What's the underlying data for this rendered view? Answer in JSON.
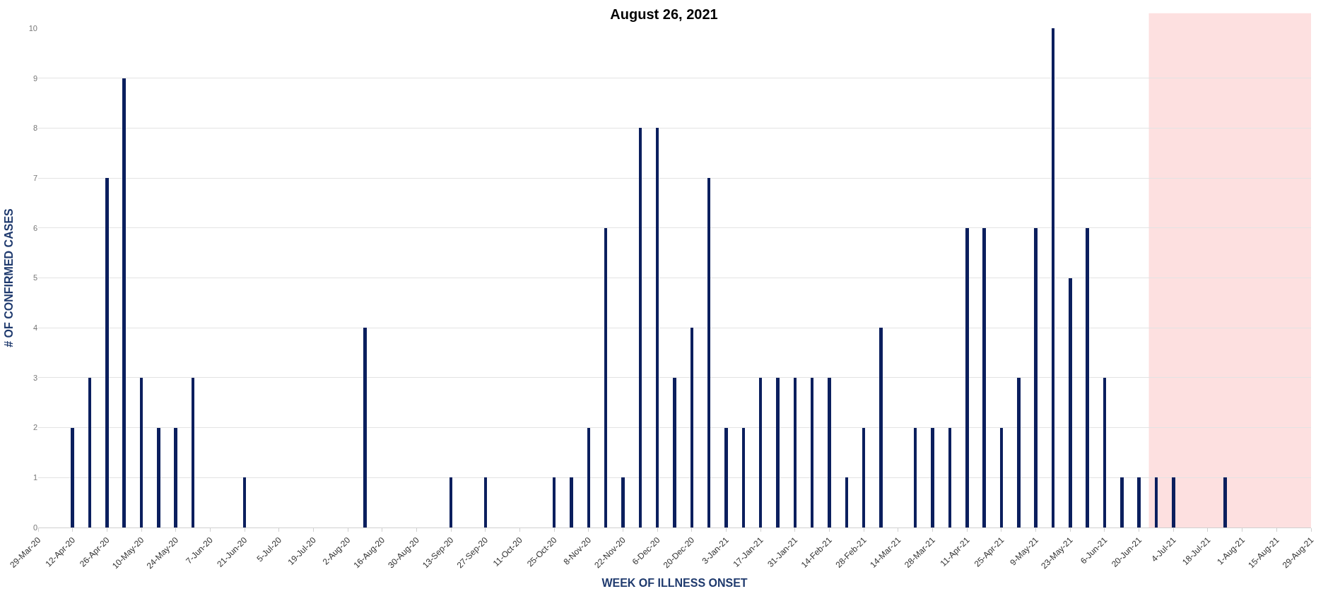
{
  "chart_data": {
    "type": "bar",
    "title": "August 26, 2021",
    "xlabel": "WEEK OF ILLNESS ONSET",
    "ylabel": "# OF CONFIRMED CASES",
    "color": "#0b1f5e",
    "x": [
      "2020-04-12",
      "2020-04-19",
      "2020-04-26",
      "2020-05-03",
      "2020-05-10",
      "2020-05-17",
      "2020-05-24",
      "2020-05-31",
      "2020-06-21",
      "2020-08-09",
      "2020-09-13",
      "2020-09-27",
      "2020-10-25",
      "2020-11-01",
      "2020-11-08",
      "2020-11-15",
      "2020-11-22",
      "2020-11-29",
      "2020-12-06",
      "2020-12-13",
      "2020-12-20",
      "2020-12-27",
      "2021-01-03",
      "2021-01-10",
      "2021-01-17",
      "2021-01-24",
      "2021-01-31",
      "2021-02-07",
      "2021-02-14",
      "2021-02-21",
      "2021-02-28",
      "2021-03-07",
      "2021-03-21",
      "2021-03-28",
      "2021-04-04",
      "2021-04-11",
      "2021-04-18",
      "2021-04-25",
      "2021-05-02",
      "2021-05-09",
      "2021-05-16",
      "2021-05-23",
      "2021-05-30",
      "2021-06-06",
      "2021-06-13",
      "2021-06-20",
      "2021-06-27",
      "2021-07-04",
      "2021-07-25"
    ],
    "values": [
      2,
      3,
      7,
      9,
      3,
      2,
      2,
      3,
      1,
      4,
      1,
      1,
      1,
      1,
      2,
      6,
      1,
      8,
      8,
      3,
      4,
      7,
      2,
      2,
      3,
      3,
      3,
      3,
      3,
      1,
      2,
      4,
      2,
      2,
      2,
      6,
      6,
      2,
      3,
      6,
      10,
      5,
      6,
      3,
      1,
      1,
      1,
      1,
      1
    ],
    "xlim": [
      "2020-03-29",
      "2021-08-29"
    ],
    "xticks": [
      {
        "value": "2020-03-29",
        "label": "29-Mar-20"
      },
      {
        "value": "2020-04-12",
        "label": "12-Apr-20"
      },
      {
        "value": "2020-04-26",
        "label": "26-Apr-20"
      },
      {
        "value": "2020-05-10",
        "label": "10-May-20"
      },
      {
        "value": "2020-05-24",
        "label": "24-May-20"
      },
      {
        "value": "2020-06-07",
        "label": "7-Jun-20"
      },
      {
        "value": "2020-06-21",
        "label": "21-Jun-20"
      },
      {
        "value": "2020-07-05",
        "label": "5-Jul-20"
      },
      {
        "value": "2020-07-19",
        "label": "19-Jul-20"
      },
      {
        "value": "2020-08-02",
        "label": "2-Aug-20"
      },
      {
        "value": "2020-08-16",
        "label": "16-Aug-20"
      },
      {
        "value": "2020-08-30",
        "label": "30-Aug-20"
      },
      {
        "value": "2020-09-13",
        "label": "13-Sep-20"
      },
      {
        "value": "2020-09-27",
        "label": "27-Sep-20"
      },
      {
        "value": "2020-10-11",
        "label": "11-Oct-20"
      },
      {
        "value": "2020-10-25",
        "label": "25-Oct-20"
      },
      {
        "value": "2020-11-08",
        "label": "8-Nov-20"
      },
      {
        "value": "2020-11-22",
        "label": "22-Nov-20"
      },
      {
        "value": "2020-12-06",
        "label": "6-Dec-20"
      },
      {
        "value": "2020-12-20",
        "label": "20-Dec-20"
      },
      {
        "value": "2021-01-03",
        "label": "3-Jan-21"
      },
      {
        "value": "2021-01-17",
        "label": "17-Jan-21"
      },
      {
        "value": "2021-01-31",
        "label": "31-Jan-21"
      },
      {
        "value": "2021-02-14",
        "label": "14-Feb-21"
      },
      {
        "value": "2021-02-28",
        "label": "28-Feb-21"
      },
      {
        "value": "2021-03-14",
        "label": "14-Mar-21"
      },
      {
        "value": "2021-03-28",
        "label": "28-Mar-21"
      },
      {
        "value": "2021-04-11",
        "label": "11-Apr-21"
      },
      {
        "value": "2021-04-25",
        "label": "25-Apr-21"
      },
      {
        "value": "2021-05-09",
        "label": "9-May-21"
      },
      {
        "value": "2021-05-23",
        "label": "23-May-21"
      },
      {
        "value": "2021-06-06",
        "label": "6-Jun-21"
      },
      {
        "value": "2021-06-20",
        "label": "20-Jun-21"
      },
      {
        "value": "2021-07-04",
        "label": "4-Jul-21"
      },
      {
        "value": "2021-07-18",
        "label": "18-Jul-21"
      },
      {
        "value": "2021-08-01",
        "label": "1-Aug-21"
      },
      {
        "value": "2021-08-15",
        "label": "15-Aug-21"
      },
      {
        "value": "2021-08-29",
        "label": "29-Aug-21"
      }
    ],
    "ylim": [
      0,
      10
    ],
    "yticks": [
      0,
      1,
      2,
      3,
      4,
      5,
      6,
      7,
      8,
      9,
      10
    ],
    "grid": "y",
    "legend": false,
    "bands": [
      {
        "axis": "x",
        "from": "2021-06-24",
        "to": "2021-08-29",
        "color": "#fde0e0"
      }
    ]
  }
}
